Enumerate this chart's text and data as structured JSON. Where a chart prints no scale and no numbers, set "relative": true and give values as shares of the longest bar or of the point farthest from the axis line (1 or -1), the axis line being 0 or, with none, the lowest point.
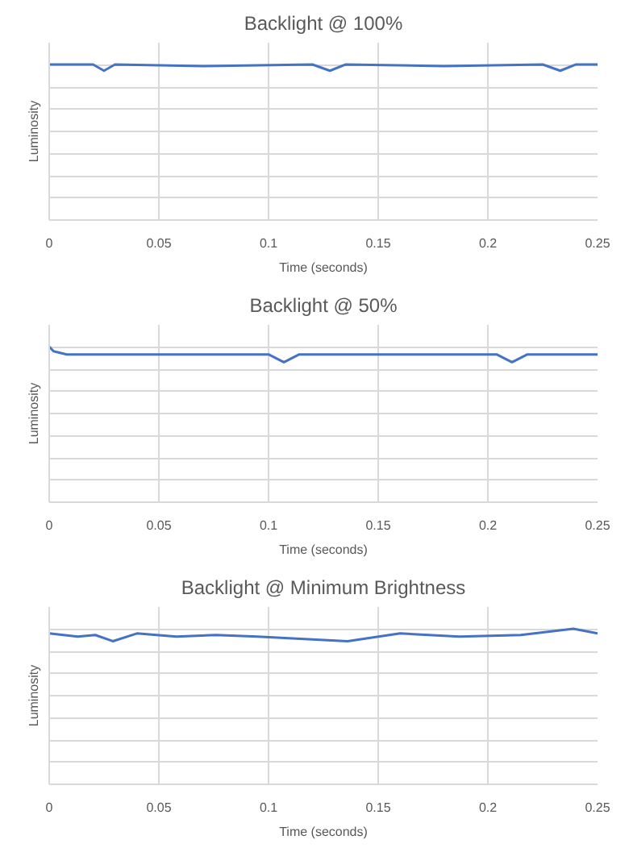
{
  "chart_data": [
    {
      "type": "line",
      "title": "Backlight @ 100%",
      "xlabel": "Time (seconds)",
      "ylabel": "Luminosity",
      "relative": true,
      "tick_labels": "x",
      "grid": true,
      "xlim": [
        0,
        0.25
      ],
      "xticks": [
        0,
        0.05,
        0.1,
        0.15,
        0.2,
        0.25
      ],
      "x": [
        0,
        0.02,
        0.025,
        0.03,
        0.07,
        0.12,
        0.128,
        0.135,
        0.18,
        0.225,
        0.233,
        0.24,
        0.25
      ],
      "series": [
        {
          "color": "#4472c4",
          "values": [
            1,
            1,
            0.96,
            1,
            0.99,
            1,
            0.96,
            1,
            0.99,
            1,
            0.96,
            1,
            1
          ]
        }
      ]
    },
    {
      "type": "line",
      "title": "Backlight @ 50%",
      "xlabel": "Time (seconds)",
      "ylabel": "Luminosity",
      "relative": true,
      "tick_labels": "x",
      "grid": true,
      "xlim": [
        0,
        0.25
      ],
      "xticks": [
        0,
        0.05,
        0.1,
        0.15,
        0.2,
        0.25
      ],
      "x": [
        0,
        0.002,
        0.008,
        0.05,
        0.1,
        0.107,
        0.114,
        0.16,
        0.204,
        0.211,
        0.218,
        0.25
      ],
      "series": [
        {
          "color": "#4472c4",
          "values": [
            1,
            0.97,
            0.95,
            0.95,
            0.95,
            0.9,
            0.95,
            0.95,
            0.95,
            0.9,
            0.95,
            0.95
          ]
        }
      ]
    },
    {
      "type": "line",
      "title": "Backlight @ Minimum Brightness",
      "xlabel": "Time (seconds)",
      "ylabel": "Luminosity",
      "relative": true,
      "tick_labels": "x",
      "grid": true,
      "xlim": [
        0,
        0.25
      ],
      "xticks": [
        0,
        0.05,
        0.1,
        0.15,
        0.2,
        0.25
      ],
      "x": [
        0,
        0.013,
        0.021,
        0.029,
        0.04,
        0.058,
        0.076,
        0.095,
        0.136,
        0.16,
        0.187,
        0.215,
        0.239,
        0.25
      ],
      "series": [
        {
          "color": "#4472c4",
          "values": [
            0.97,
            0.95,
            0.96,
            0.92,
            0.97,
            0.95,
            0.96,
            0.95,
            0.92,
            0.97,
            0.95,
            0.96,
            1,
            0.97
          ]
        }
      ]
    }
  ]
}
